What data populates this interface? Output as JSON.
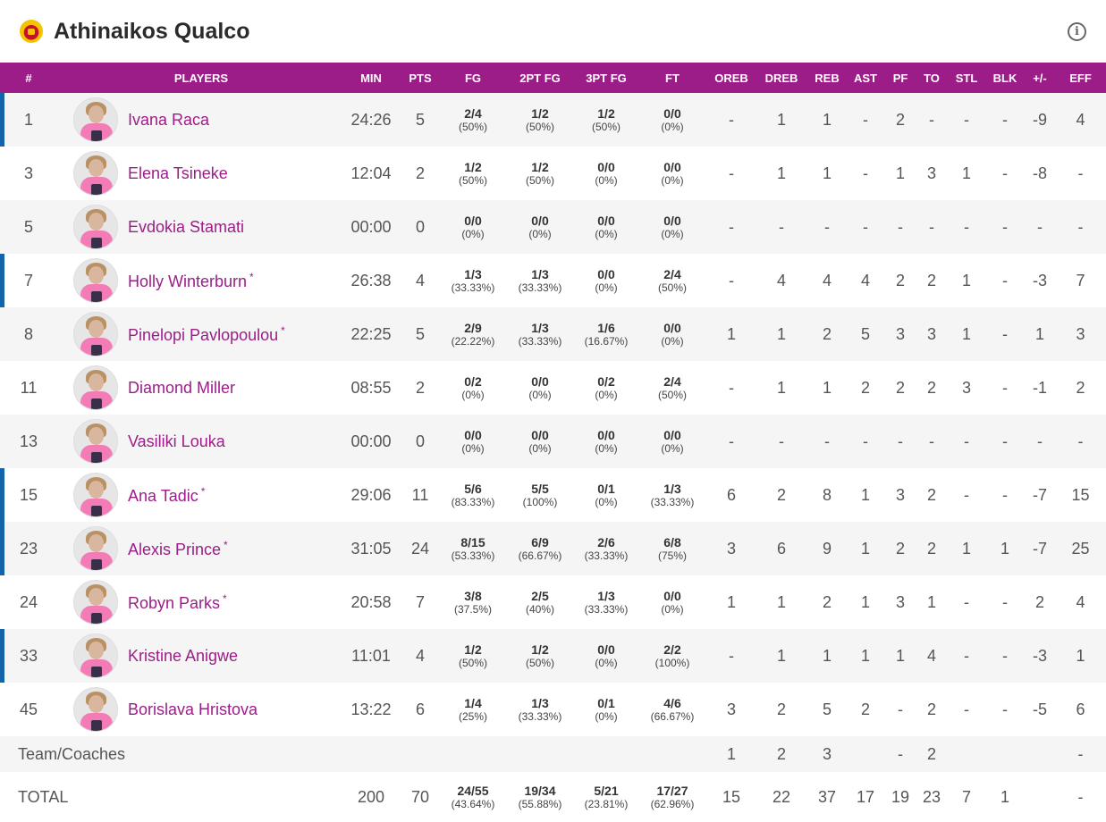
{
  "header": {
    "team_name": "Athinaikos Qualco",
    "logo_icon": "team-crest",
    "info_icon": "info-circle-icon"
  },
  "colors": {
    "header_bg": "#9c1d88",
    "player_name": "#9c1d88",
    "starter_bar": "#1364a8"
  },
  "columns": [
    "#",
    "PLAYERS",
    "MIN",
    "PTS",
    "FG",
    "2PT FG",
    "3PT FG",
    "FT",
    "OREB",
    "DREB",
    "REB",
    "AST",
    "PF",
    "TO",
    "STL",
    "BLK",
    "+/-",
    "EFF"
  ],
  "players": [
    {
      "num": "1",
      "name": "Ivana Raca",
      "star": "",
      "starter": true,
      "min": "24:26",
      "pts": "5",
      "fg": "2/4",
      "fg_pct": "(50%)",
      "fg2": "1/2",
      "fg2_pct": "(50%)",
      "fg3": "1/2",
      "fg3_pct": "(50%)",
      "ft": "0/0",
      "ft_pct": "(0%)",
      "oreb": "-",
      "dreb": "1",
      "reb": "1",
      "ast": "-",
      "pf": "2",
      "to": "-",
      "stl": "-",
      "blk": "-",
      "pm": "-9",
      "eff": "4"
    },
    {
      "num": "3",
      "name": "Elena Tsineke",
      "star": "",
      "starter": false,
      "min": "12:04",
      "pts": "2",
      "fg": "1/2",
      "fg_pct": "(50%)",
      "fg2": "1/2",
      "fg2_pct": "(50%)",
      "fg3": "0/0",
      "fg3_pct": "(0%)",
      "ft": "0/0",
      "ft_pct": "(0%)",
      "oreb": "-",
      "dreb": "1",
      "reb": "1",
      "ast": "-",
      "pf": "1",
      "to": "3",
      "stl": "1",
      "blk": "-",
      "pm": "-8",
      "eff": "-"
    },
    {
      "num": "5",
      "name": "Evdokia Stamati",
      "star": "",
      "starter": false,
      "min": "00:00",
      "pts": "0",
      "fg": "0/0",
      "fg_pct": "(0%)",
      "fg2": "0/0",
      "fg2_pct": "(0%)",
      "fg3": "0/0",
      "fg3_pct": "(0%)",
      "ft": "0/0",
      "ft_pct": "(0%)",
      "oreb": "-",
      "dreb": "-",
      "reb": "-",
      "ast": "-",
      "pf": "-",
      "to": "-",
      "stl": "-",
      "blk": "-",
      "pm": "-",
      "eff": "-"
    },
    {
      "num": "7",
      "name": "Holly Winterburn",
      "star": "*",
      "starter": true,
      "min": "26:38",
      "pts": "4",
      "fg": "1/3",
      "fg_pct": "(33.33%)",
      "fg2": "1/3",
      "fg2_pct": "(33.33%)",
      "fg3": "0/0",
      "fg3_pct": "(0%)",
      "ft": "2/4",
      "ft_pct": "(50%)",
      "oreb": "-",
      "dreb": "4",
      "reb": "4",
      "ast": "4",
      "pf": "2",
      "to": "2",
      "stl": "1",
      "blk": "-",
      "pm": "-3",
      "eff": "7"
    },
    {
      "num": "8",
      "name": "Pinelopi Pavlopoulou",
      "star": "*",
      "starter": false,
      "min": "22:25",
      "pts": "5",
      "fg": "2/9",
      "fg_pct": "(22.22%)",
      "fg2": "1/3",
      "fg2_pct": "(33.33%)",
      "fg3": "1/6",
      "fg3_pct": "(16.67%)",
      "ft": "0/0",
      "ft_pct": "(0%)",
      "oreb": "1",
      "dreb": "1",
      "reb": "2",
      "ast": "5",
      "pf": "3",
      "to": "3",
      "stl": "1",
      "blk": "-",
      "pm": "1",
      "eff": "3"
    },
    {
      "num": "11",
      "name": "Diamond Miller",
      "star": "",
      "starter": false,
      "min": "08:55",
      "pts": "2",
      "fg": "0/2",
      "fg_pct": "(0%)",
      "fg2": "0/0",
      "fg2_pct": "(0%)",
      "fg3": "0/2",
      "fg3_pct": "(0%)",
      "ft": "2/4",
      "ft_pct": "(50%)",
      "oreb": "-",
      "dreb": "1",
      "reb": "1",
      "ast": "2",
      "pf": "2",
      "to": "2",
      "stl": "3",
      "blk": "-",
      "pm": "-1",
      "eff": "2"
    },
    {
      "num": "13",
      "name": "Vasiliki Louka",
      "star": "",
      "starter": false,
      "min": "00:00",
      "pts": "0",
      "fg": "0/0",
      "fg_pct": "(0%)",
      "fg2": "0/0",
      "fg2_pct": "(0%)",
      "fg3": "0/0",
      "fg3_pct": "(0%)",
      "ft": "0/0",
      "ft_pct": "(0%)",
      "oreb": "-",
      "dreb": "-",
      "reb": "-",
      "ast": "-",
      "pf": "-",
      "to": "-",
      "stl": "-",
      "blk": "-",
      "pm": "-",
      "eff": "-"
    },
    {
      "num": "15",
      "name": "Ana Tadic",
      "star": "*",
      "starter": true,
      "min": "29:06",
      "pts": "11",
      "fg": "5/6",
      "fg_pct": "(83.33%)",
      "fg2": "5/5",
      "fg2_pct": "(100%)",
      "fg3": "0/1",
      "fg3_pct": "(0%)",
      "ft": "1/3",
      "ft_pct": "(33.33%)",
      "oreb": "6",
      "dreb": "2",
      "reb": "8",
      "ast": "1",
      "pf": "3",
      "to": "2",
      "stl": "-",
      "blk": "-",
      "pm": "-7",
      "eff": "15"
    },
    {
      "num": "23",
      "name": "Alexis Prince",
      "star": "*",
      "starter": true,
      "min": "31:05",
      "pts": "24",
      "fg": "8/15",
      "fg_pct": "(53.33%)",
      "fg2": "6/9",
      "fg2_pct": "(66.67%)",
      "fg3": "2/6",
      "fg3_pct": "(33.33%)",
      "ft": "6/8",
      "ft_pct": "(75%)",
      "oreb": "3",
      "dreb": "6",
      "reb": "9",
      "ast": "1",
      "pf": "2",
      "to": "2",
      "stl": "1",
      "blk": "1",
      "pm": "-7",
      "eff": "25"
    },
    {
      "num": "24",
      "name": "Robyn Parks",
      "star": "*",
      "starter": false,
      "min": "20:58",
      "pts": "7",
      "fg": "3/8",
      "fg_pct": "(37.5%)",
      "fg2": "2/5",
      "fg2_pct": "(40%)",
      "fg3": "1/3",
      "fg3_pct": "(33.33%)",
      "ft": "0/0",
      "ft_pct": "(0%)",
      "oreb": "1",
      "dreb": "1",
      "reb": "2",
      "ast": "1",
      "pf": "3",
      "to": "1",
      "stl": "-",
      "blk": "-",
      "pm": "2",
      "eff": "4"
    },
    {
      "num": "33",
      "name": "Kristine Anigwe",
      "star": "",
      "starter": true,
      "min": "11:01",
      "pts": "4",
      "fg": "1/2",
      "fg_pct": "(50%)",
      "fg2": "1/2",
      "fg2_pct": "(50%)",
      "fg3": "0/0",
      "fg3_pct": "(0%)",
      "ft": "2/2",
      "ft_pct": "(100%)",
      "oreb": "-",
      "dreb": "1",
      "reb": "1",
      "ast": "1",
      "pf": "1",
      "to": "4",
      "stl": "-",
      "blk": "-",
      "pm": "-3",
      "eff": "1"
    },
    {
      "num": "45",
      "name": "Borislava Hristova",
      "star": "",
      "starter": false,
      "min": "13:22",
      "pts": "6",
      "fg": "1/4",
      "fg_pct": "(25%)",
      "fg2": "1/3",
      "fg2_pct": "(33.33%)",
      "fg3": "0/1",
      "fg3_pct": "(0%)",
      "ft": "4/6",
      "ft_pct": "(66.67%)",
      "oreb": "3",
      "dreb": "2",
      "reb": "5",
      "ast": "2",
      "pf": "-",
      "to": "2",
      "stl": "-",
      "blk": "-",
      "pm": "-5",
      "eff": "6"
    }
  ],
  "team_row": {
    "label": "Team/Coaches",
    "oreb": "1",
    "dreb": "2",
    "reb": "3",
    "ast": "",
    "pf": "-",
    "to": "2",
    "stl": "",
    "blk": "",
    "pm": "",
    "eff": "-"
  },
  "total_row": {
    "label": "TOTAL",
    "min": "200",
    "pts": "70",
    "fg": "24/55",
    "fg_pct": "(43.64%)",
    "fg2": "19/34",
    "fg2_pct": "(55.88%)",
    "fg3": "5/21",
    "fg3_pct": "(23.81%)",
    "ft": "17/27",
    "ft_pct": "(62.96%)",
    "oreb": "15",
    "dreb": "22",
    "reb": "37",
    "ast": "17",
    "pf": "19",
    "to": "23",
    "stl": "7",
    "blk": "1",
    "pm": "",
    "eff": "-"
  }
}
